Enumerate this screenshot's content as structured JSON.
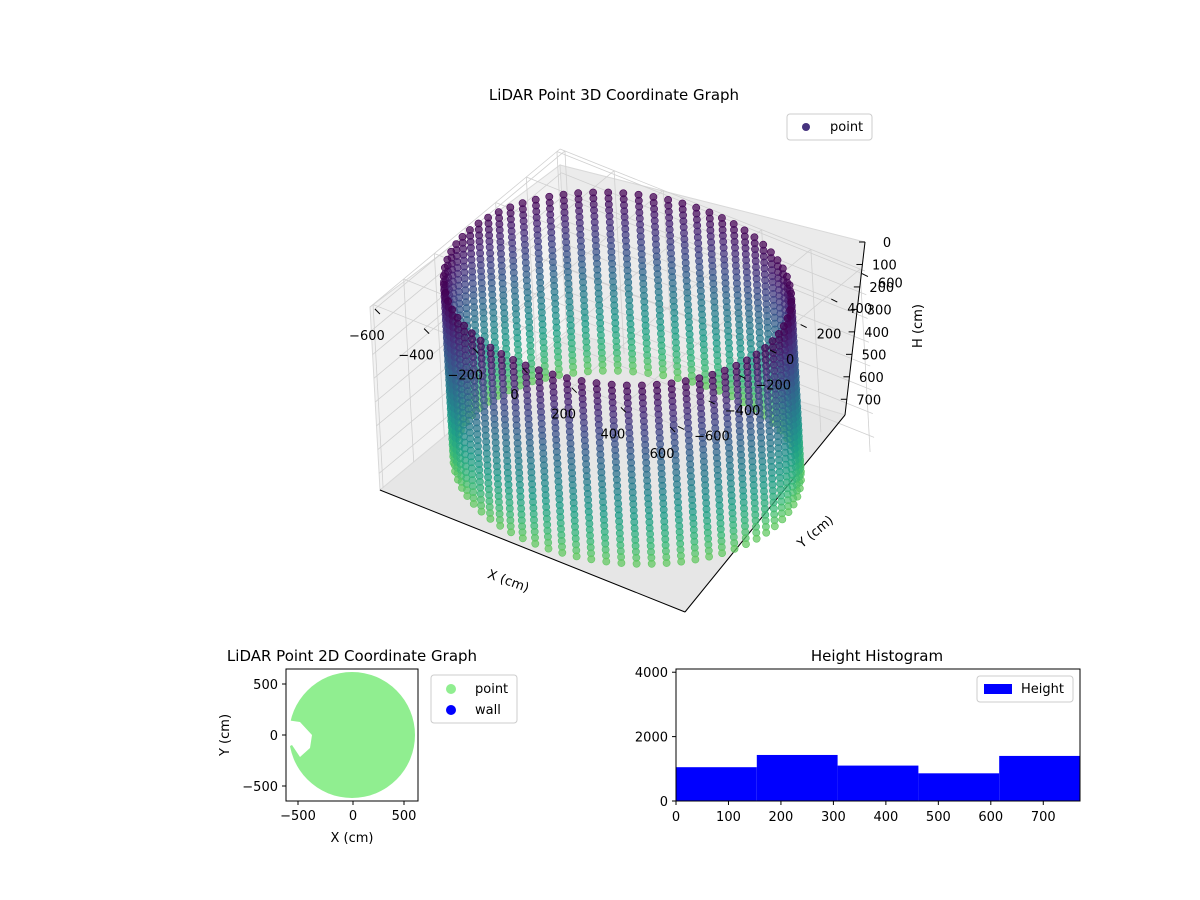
{
  "chart_data": [
    {
      "type": "scatter",
      "projection": "3d",
      "title": "LiDAR Point 3D Coordinate Graph",
      "xlabel": "X (cm)",
      "ylabel": "Y (cm)",
      "zlabel": "H (cm)",
      "xlim": [
        -620,
        620
      ],
      "ylim": [
        -620,
        620
      ],
      "zlim": [
        0,
        770
      ],
      "z_axis_inverted": true,
      "xticks": [
        "−600",
        "−400",
        "−200",
        "0",
        "200",
        "400",
        "600"
      ],
      "yticks": [
        "−600",
        "−400",
        "−200",
        "0",
        "200",
        "400",
        "600"
      ],
      "zticks": [
        "0",
        "100",
        "200",
        "300",
        "400",
        "500",
        "600",
        "700"
      ],
      "colormap": "viridis",
      "cylinder": {
        "radius": 600,
        "height_min": 0,
        "height_max": 770,
        "height_step": 25,
        "angle_step_deg": 5
      },
      "legend": {
        "entries": [
          {
            "label": "point",
            "color": "#46337e"
          }
        ],
        "placement": "upper right"
      },
      "grid": true
    },
    {
      "type": "scatter",
      "title": "LiDAR Point 2D Coordinate Graph",
      "xlabel": "X (cm)",
      "ylabel": "Y (cm)",
      "xlim": [
        -640,
        620
      ],
      "ylim": [
        -640,
        640
      ],
      "xticks": [
        "−500",
        "0",
        "500"
      ],
      "yticks": [
        "500",
        "0",
        "−500"
      ],
      "series": [
        {
          "name": "point",
          "color": "#90ee90"
        },
        {
          "name": "wall",
          "color": "#0000ff"
        }
      ],
      "floor_radius": 600,
      "legend_placement": "outside right"
    },
    {
      "type": "bar",
      "title": "Height Histogram",
      "bin_edges": [
        0,
        154,
        308,
        462,
        616,
        770
      ],
      "values": [
        1050,
        1430,
        1100,
        860,
        1400
      ],
      "xlim": [
        0,
        770
      ],
      "ylim": [
        0,
        4100
      ],
      "xticks": [
        "0",
        "100",
        "200",
        "300",
        "400",
        "500",
        "600",
        "700"
      ],
      "yticks": [
        "0",
        "2000",
        "4000"
      ],
      "color": "#0000ff",
      "series": [
        {
          "name": "Height"
        }
      ],
      "legend_placement": "upper right"
    }
  ]
}
